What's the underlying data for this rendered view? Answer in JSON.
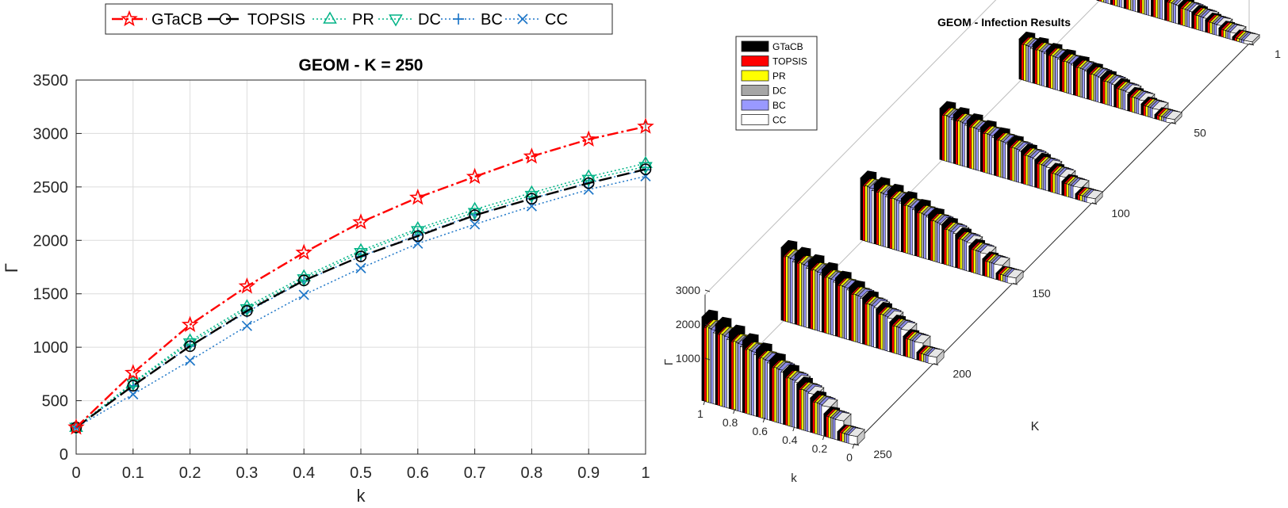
{
  "chart_data": [
    {
      "type": "line",
      "title": "GEOM - K = 250",
      "xlabel": "k",
      "ylabel": "Γ",
      "xlim": [
        0,
        1
      ],
      "ylim": [
        0,
        3500
      ],
      "grid": true,
      "legend_position": "top-outside",
      "x": [
        0,
        0.1,
        0.2,
        0.3,
        0.4,
        0.5,
        0.6,
        0.7,
        0.8,
        0.9,
        1
      ],
      "x_ticks": [
        "0",
        "0.1",
        "0.2",
        "0.3",
        "0.4",
        "0.5",
        "0.6",
        "0.7",
        "0.8",
        "0.9",
        "1"
      ],
      "y_ticks": [
        "0",
        "500",
        "1000",
        "1500",
        "2000",
        "2500",
        "3000",
        "3500"
      ],
      "series": [
        {
          "name": "GTaCB",
          "color": "#ff0000",
          "marker": "star",
          "values": [
            250,
            760,
            1210,
            1570,
            1885,
            2170,
            2400,
            2595,
            2785,
            2945,
            3065
          ]
        },
        {
          "name": "TOPSIS",
          "color": "#000000",
          "marker": "circle",
          "values": [
            250,
            640,
            1010,
            1340,
            1625,
            1850,
            2040,
            2235,
            2390,
            2535,
            2665
          ]
        },
        {
          "name": "PR",
          "color": "#00b386",
          "marker": "triangle-up",
          "values": [
            250,
            670,
            1060,
            1380,
            1660,
            1905,
            2110,
            2290,
            2445,
            2595,
            2720
          ]
        },
        {
          "name": "DC",
          "color": "#00b386",
          "marker": "triangle-down",
          "values": [
            250,
            660,
            1040,
            1360,
            1640,
            1885,
            2090,
            2260,
            2420,
            2570,
            2690
          ]
        },
        {
          "name": "BC",
          "color": "#1f77c8",
          "marker": "plus",
          "values": [
            250,
            640,
            1010,
            1330,
            1620,
            1850,
            2050,
            2240,
            2390,
            2540,
            2660
          ]
        },
        {
          "name": "CC",
          "color": "#1f77c8",
          "marker": "x",
          "values": [
            250,
            560,
            875,
            1200,
            1490,
            1740,
            1970,
            2150,
            2320,
            2475,
            2600
          ]
        }
      ]
    },
    {
      "type": "bar3d",
      "title": "GEOM -  Infection Results",
      "xlabel": "k",
      "ylabel": "K",
      "zlabel": "Γ",
      "legend_position": "top-left",
      "k_ticks": [
        "1",
        "0.8",
        "0.6",
        "0.4",
        "0.2",
        "0"
      ],
      "K_ticks": [
        "1",
        "50",
        "100",
        "150",
        "200",
        "250"
      ],
      "z_ticks": [
        "1000",
        "2000",
        "3000"
      ],
      "K_values": [
        1,
        50,
        100,
        150,
        200,
        250
      ],
      "k_values": [
        1,
        0.9,
        0.8,
        0.7,
        0.6,
        0.5,
        0.4,
        0.3,
        0.2,
        0.1,
        0
      ],
      "series": [
        {
          "name": "GTaCB",
          "color": "#000000"
        },
        {
          "name": "TOPSIS",
          "color": "#ff0000"
        },
        {
          "name": "PR",
          "color": "#ffff00"
        },
        {
          "name": "DC",
          "color": "#a6a6a6"
        },
        {
          "name": "BC",
          "color": "#9999ff"
        },
        {
          "name": "CC",
          "color": "#ffffff"
        }
      ]
    }
  ]
}
